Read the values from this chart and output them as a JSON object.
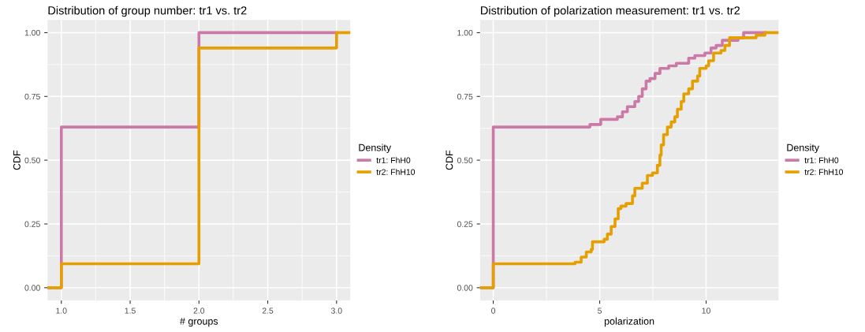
{
  "chart_data": [
    {
      "type": "step",
      "title": "Distribution of group number: tr1 vs. tr2",
      "xlabel": "# groups",
      "ylabel": "CDF",
      "legend_title": "Density",
      "legend": "right",
      "grid": true,
      "xlim": [
        0.9,
        3.1
      ],
      "xticks": [
        {
          "value": 1,
          "label": "1.0"
        },
        {
          "value": 1.5,
          "label": "1.5"
        },
        {
          "value": 2,
          "label": "2.0"
        },
        {
          "value": 2.5,
          "label": "2.5"
        },
        {
          "value": 3,
          "label": "3.0"
        }
      ],
      "ylim": [
        -0.05,
        1.05
      ],
      "yticks": [
        {
          "value": 0,
          "label": "0.00"
        },
        {
          "value": 0.25,
          "label": "0.25"
        },
        {
          "value": 0.5,
          "label": "0.50"
        },
        {
          "value": 0.75,
          "label": "0.75"
        },
        {
          "value": 1,
          "label": "1.00"
        }
      ],
      "series": [
        {
          "name": "tr1: FhH0",
          "color": "#cc79a7",
          "x": [
            0.9,
            1,
            2,
            3
          ],
          "values": [
            0,
            0.63,
            1,
            1
          ]
        },
        {
          "name": "tr2: FhH10",
          "color": "#e69f00",
          "x": [
            0.9,
            1,
            2,
            3,
            3.1
          ],
          "values": [
            0,
            0.094,
            0.94,
            1,
            1
          ]
        }
      ]
    },
    {
      "type": "step",
      "title": "Distribution of polarization measurement: tr1 vs. tr2",
      "xlabel": "polarization",
      "ylabel": "CDF",
      "legend_title": "Density",
      "legend": "right",
      "grid": true,
      "xlim": [
        -0.62,
        13.4
      ],
      "xticks": [
        0,
        5,
        10
      ],
      "ylim": [
        -0.05,
        1.05
      ],
      "yticks": [
        {
          "value": 0,
          "label": "0.00"
        },
        {
          "value": 0.25,
          "label": "0.25"
        },
        {
          "value": 0.5,
          "label": "0.50"
        },
        {
          "value": 0.75,
          "label": "0.75"
        },
        {
          "value": 1,
          "label": "1.00"
        }
      ],
      "series": [
        {
          "name": "tr1: FhH0",
          "color": "#cc79a7",
          "x": [
            -0.62,
            0,
            4.54,
            5.05,
            5.83,
            6.07,
            6.3,
            6.65,
            6.83,
            7.0,
            7.18,
            7.36,
            7.6,
            7.83,
            8.24,
            8.6,
            9.18,
            9.47,
            9.94,
            10.23,
            10.47,
            10.76,
            11.5,
            11.76,
            12.76
          ],
          "values": [
            0,
            0.63,
            0.64,
            0.66,
            0.67,
            0.69,
            0.71,
            0.73,
            0.75,
            0.78,
            0.81,
            0.82,
            0.84,
            0.86,
            0.87,
            0.88,
            0.9,
            0.91,
            0.92,
            0.94,
            0.95,
            0.97,
            0.98,
            1.0,
            1.0
          ]
        },
        {
          "name": "tr2: FhH10",
          "color": "#e69f00",
          "x": [
            -0.62,
            0,
            3.84,
            4.13,
            4.37,
            4.6,
            4.66,
            5.21,
            5.36,
            5.54,
            5.72,
            5.87,
            6.0,
            6.24,
            6.54,
            6.65,
            7.0,
            7.24,
            7.48,
            7.71,
            7.83,
            7.89,
            8.0,
            8.18,
            8.36,
            8.53,
            8.65,
            8.83,
            8.95,
            9.18,
            9.36,
            9.6,
            9.7,
            10.0,
            10.12,
            10.35,
            10.7,
            10.88,
            11.1,
            12.35,
            12.76,
            13.4
          ],
          "values": [
            0,
            0.094,
            0.1,
            0.12,
            0.14,
            0.15,
            0.18,
            0.19,
            0.21,
            0.24,
            0.27,
            0.31,
            0.32,
            0.33,
            0.36,
            0.39,
            0.41,
            0.44,
            0.45,
            0.48,
            0.52,
            0.56,
            0.6,
            0.63,
            0.65,
            0.67,
            0.7,
            0.73,
            0.76,
            0.78,
            0.81,
            0.83,
            0.86,
            0.87,
            0.89,
            0.92,
            0.93,
            0.95,
            0.98,
            0.99,
            1.0,
            1.0
          ]
        }
      ]
    }
  ]
}
